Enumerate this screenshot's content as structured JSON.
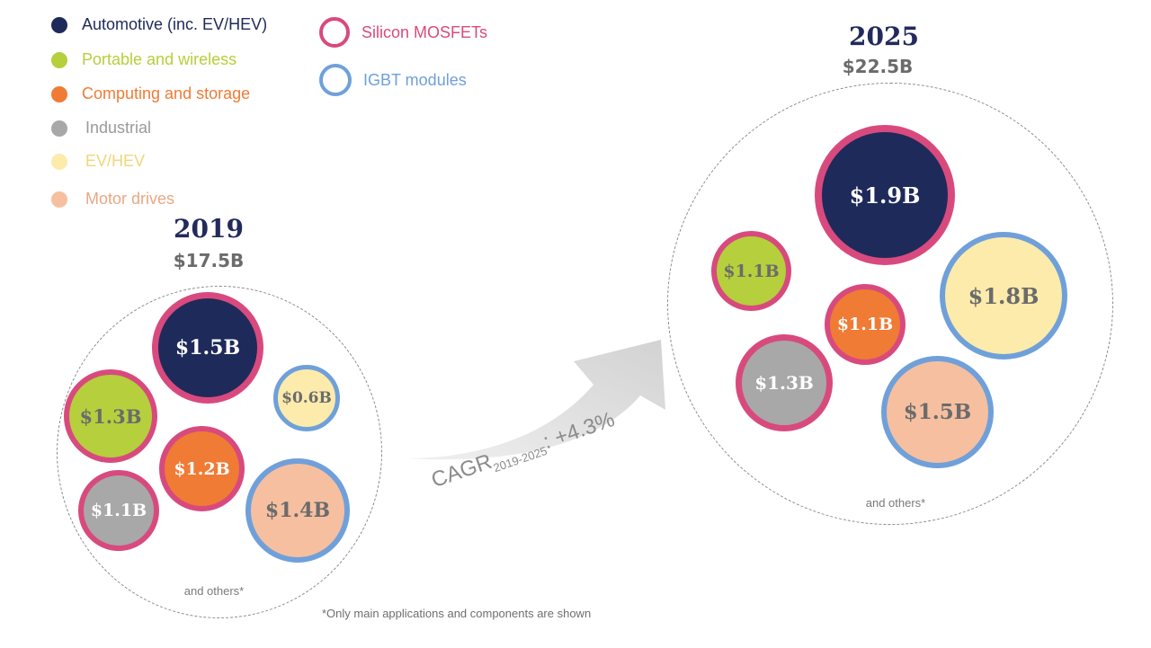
{
  "legend": {
    "applications": [
      {
        "label": "Automotive (inc. EV/HEV)",
        "color": "#1e2a5a"
      },
      {
        "label": "Portable and wireless",
        "color": "#b6cf3c"
      },
      {
        "label": "Computing and storage",
        "color": "#ef7b35"
      },
      {
        "label": "Industrial",
        "color": "#a8a8a8"
      },
      {
        "label": "EV/HEV",
        "color": "#fcebab"
      },
      {
        "label": "Motor drives",
        "color": "#f6bfa0"
      }
    ],
    "components": [
      {
        "label": "Silicon MOSFETs",
        "color": "#d84a7e"
      },
      {
        "label": "IGBT modules",
        "color": "#6fa0da"
      }
    ]
  },
  "group_2019": {
    "year": "2019",
    "total": "$17.5B",
    "others_note": "and others*",
    "bubbles": [
      {
        "value": "$1.5B",
        "fill": "#1e2a5a",
        "ring": "#d84a7e",
        "text_color": "#ffffff"
      },
      {
        "value": "$0.6B",
        "fill": "#fcebab",
        "ring": "#6fa0da",
        "text_color": "#6b6b6b"
      },
      {
        "value": "$1.3B",
        "fill": "#b6cf3c",
        "ring": "#d84a7e",
        "text_color": "#6b6b6b"
      },
      {
        "value": "$1.2B",
        "fill": "#ef7b35",
        "ring": "#d84a7e",
        "text_color": "#ffffff"
      },
      {
        "value": "$1.1B",
        "fill": "#a8a8a8",
        "ring": "#d84a7e",
        "text_color": "#ffffff"
      },
      {
        "value": "$1.4B",
        "fill": "#f6bfa0",
        "ring": "#6fa0da",
        "text_color": "#6b6b6b"
      }
    ]
  },
  "group_2025": {
    "year": "2025",
    "total": "$22.5B",
    "others_note": "and others*",
    "bubbles": [
      {
        "value": "$1.9B",
        "fill": "#1e2a5a",
        "ring": "#d84a7e",
        "text_color": "#ffffff"
      },
      {
        "value": "$1.1B",
        "fill": "#b6cf3c",
        "ring": "#d84a7e",
        "text_color": "#6b6b6b"
      },
      {
        "value": "$1.8B",
        "fill": "#fcebab",
        "ring": "#6fa0da",
        "text_color": "#6b6b6b"
      },
      {
        "value": "$1.1B",
        "fill": "#ef7b35",
        "ring": "#d84a7e",
        "text_color": "#ffffff"
      },
      {
        "value": "$1.3B",
        "fill": "#a8a8a8",
        "ring": "#d84a7e",
        "text_color": "#ffffff"
      },
      {
        "value": "$1.5B",
        "fill": "#f6bfa0",
        "ring": "#6fa0da",
        "text_color": "#6b6b6b"
      }
    ]
  },
  "cagr": {
    "label": "CAGR",
    "period": "2019-2025",
    "value": ": +4.3%"
  },
  "footnote": "*Only main applications and components are shown"
}
